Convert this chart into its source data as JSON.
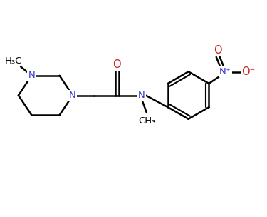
{
  "background_color": "#ffffff",
  "bond_color": "#000000",
  "nitrogen_color": "#3333cc",
  "oxygen_color": "#cc2222",
  "bond_width": 1.8,
  "font_size_label": 9.5,
  "fig_width": 3.75,
  "fig_height": 3.04,
  "dpi": 100,
  "xlim": [
    0,
    8.0
  ],
  "ylim": [
    -0.5,
    4.0
  ]
}
